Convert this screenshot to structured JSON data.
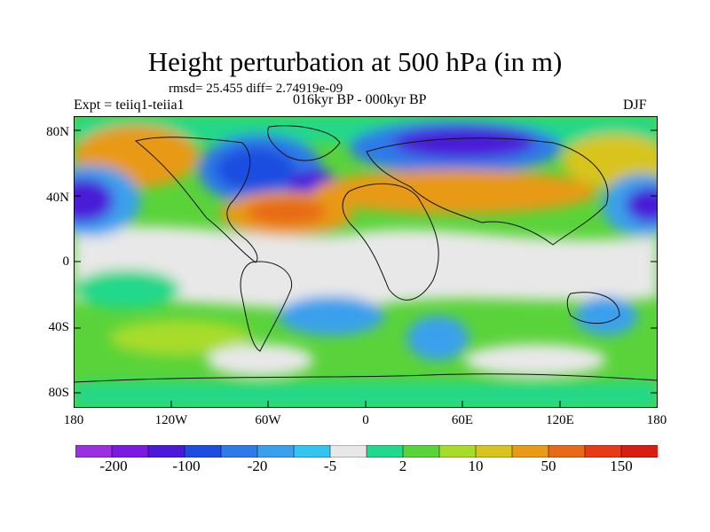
{
  "title": "Height perturbation at 500 hPa (in m)",
  "stats": "rmsd= 25.455 diff= 2.74919e-09",
  "experiment": "Expt = teiiq1-teiia1",
  "period": "016kyr BP - 000kyr BP",
  "season": "DJF",
  "lat_labels": [
    "80N",
    "40N",
    "0",
    "40S",
    "80S"
  ],
  "lon_labels": [
    "180",
    "120W",
    "60W",
    "0",
    "60E",
    "120E",
    "180"
  ],
  "colorbar": {
    "labels": [
      "-200",
      "-100",
      "-20",
      "-5",
      "2",
      "10",
      "50",
      "150"
    ],
    "colors": [
      "#9b30e0",
      "#7b1ae0",
      "#4a1ad8",
      "#1e4ee0",
      "#2e7ae8",
      "#3aa0ec",
      "#33c4f0",
      "#e8e8e8",
      "#22d88a",
      "#5ad33a",
      "#a8dc2a",
      "#d8c41e",
      "#e89a18",
      "#e86a18",
      "#e83a18",
      "#d81e12"
    ]
  },
  "map_data": {
    "projection": "cylindrical-equidistant",
    "lon_range": [
      -180,
      180
    ],
    "lat_range": [
      -90,
      90
    ],
    "field": "500 hPa geopotential height perturbation",
    "features": [
      "coastlines"
    ]
  }
}
